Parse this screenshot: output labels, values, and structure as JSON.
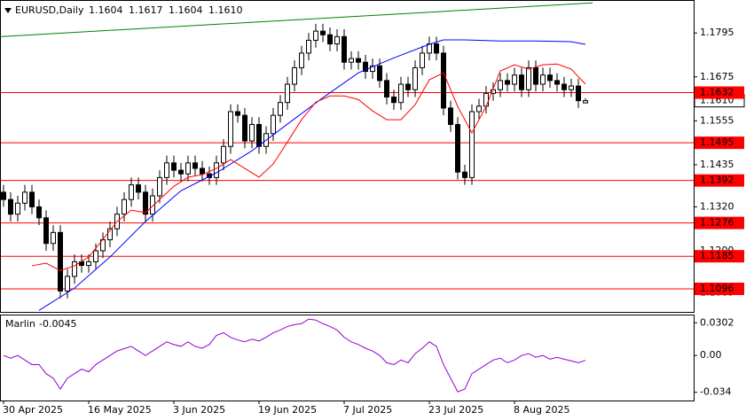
{
  "chart_data": [
    {
      "type": "candlestick",
      "title": "EURUSD,Daily",
      "header_values": [
        "1.1604",
        "1.1617",
        "1.1604",
        "1.1610"
      ],
      "xlim": [
        -0.5,
        97.25
      ],
      "xticks": [
        {
          "value": 0,
          "label": "30 Apr 2025"
        },
        {
          "value": 12,
          "label": "16 May 2025"
        },
        {
          "value": 24,
          "label": "3 Jun 2025"
        },
        {
          "value": 36,
          "label": "19 Jun 2025"
        },
        {
          "value": 48,
          "label": "7 Jul 2025"
        },
        {
          "value": 60,
          "label": "23 Jul 2025"
        },
        {
          "value": 72,
          "label": "8 Aug 2025"
        }
      ],
      "open": [
        1.136,
        1.134,
        1.13,
        1.133,
        1.136,
        1.132,
        1.129,
        1.122,
        1.125,
        1.109,
        1.113,
        1.117,
        1.116,
        1.117,
        1.12,
        1.123,
        1.126,
        1.13,
        1.134,
        1.138,
        1.136,
        1.13,
        1.135,
        1.14,
        1.144,
        1.142,
        1.141,
        1.144,
        1.1425,
        1.141,
        1.14,
        1.144,
        1.1485,
        1.158,
        1.157,
        1.15,
        1.1545,
        1.1485,
        1.152,
        1.157,
        1.1605,
        1.1655,
        1.17,
        1.174,
        1.1775,
        1.18,
        1.179,
        1.1765,
        1.1785,
        1.1715,
        1.1725,
        1.1715,
        1.169,
        1.1705,
        1.1665,
        1.162,
        1.1605,
        1.1655,
        1.164,
        1.17,
        1.174,
        1.1765,
        1.174,
        1.159,
        1.1545,
        1.1415,
        1.14,
        1.158,
        1.1595,
        1.163,
        1.164,
        1.1665,
        1.1655,
        1.168,
        1.164,
        1.17,
        1.1655,
        1.168,
        1.1665,
        1.1655,
        1.164,
        1.165,
        1.1604
      ],
      "high": [
        1.138,
        1.136,
        1.135,
        1.138,
        1.138,
        1.134,
        1.131,
        1.127,
        1.127,
        1.115,
        1.119,
        1.119,
        1.119,
        1.122,
        1.125,
        1.128,
        1.132,
        1.136,
        1.14,
        1.14,
        1.138,
        1.137,
        1.142,
        1.146,
        1.146,
        1.144,
        1.146,
        1.146,
        1.1445,
        1.143,
        1.146,
        1.1505,
        1.16,
        1.16,
        1.159,
        1.1565,
        1.1565,
        1.154,
        1.159,
        1.1625,
        1.1675,
        1.172,
        1.176,
        1.1795,
        1.182,
        1.182,
        1.181,
        1.1805,
        1.1805,
        1.1745,
        1.1745,
        1.1735,
        1.1725,
        1.1725,
        1.1685,
        1.164,
        1.1675,
        1.1675,
        1.172,
        1.176,
        1.1785,
        1.1785,
        1.176,
        1.161,
        1.1565,
        1.1435,
        1.16,
        1.1615,
        1.165,
        1.166,
        1.1685,
        1.1685,
        1.17,
        1.17,
        1.172,
        1.172,
        1.17,
        1.17,
        1.1685,
        1.1675,
        1.167,
        1.167,
        1.1617
      ],
      "low": [
        1.132,
        1.128,
        1.128,
        1.131,
        1.13,
        1.127,
        1.12,
        1.12,
        1.107,
        1.107,
        1.111,
        1.114,
        1.114,
        1.115,
        1.118,
        1.121,
        1.124,
        1.128,
        1.132,
        1.134,
        1.128,
        1.128,
        1.133,
        1.138,
        1.14,
        1.139,
        1.139,
        1.1405,
        1.139,
        1.138,
        1.138,
        1.142,
        1.1465,
        1.155,
        1.148,
        1.148,
        1.1465,
        1.1465,
        1.15,
        1.155,
        1.1585,
        1.1635,
        1.168,
        1.172,
        1.1755,
        1.177,
        1.1745,
        1.1745,
        1.1695,
        1.1695,
        1.1695,
        1.167,
        1.167,
        1.1645,
        1.16,
        1.1585,
        1.1585,
        1.162,
        1.162,
        1.168,
        1.172,
        1.172,
        1.157,
        1.1525,
        1.1395,
        1.138,
        1.138,
        1.156,
        1.1575,
        1.161,
        1.162,
        1.1635,
        1.1635,
        1.162,
        1.162,
        1.1635,
        1.1635,
        1.1645,
        1.1635,
        1.162,
        1.162,
        1.159,
        1.1604
      ],
      "close": [
        1.134,
        1.13,
        1.133,
        1.136,
        1.132,
        1.129,
        1.122,
        1.125,
        1.109,
        1.113,
        1.117,
        1.116,
        1.117,
        1.12,
        1.123,
        1.126,
        1.13,
        1.134,
        1.138,
        1.136,
        1.13,
        1.135,
        1.14,
        1.144,
        1.142,
        1.141,
        1.144,
        1.1425,
        1.141,
        1.14,
        1.144,
        1.1485,
        1.158,
        1.157,
        1.15,
        1.1545,
        1.1485,
        1.152,
        1.157,
        1.1605,
        1.1655,
        1.17,
        1.174,
        1.1775,
        1.18,
        1.179,
        1.1765,
        1.1785,
        1.1715,
        1.1725,
        1.1715,
        1.169,
        1.1705,
        1.1665,
        1.162,
        1.1605,
        1.1655,
        1.164,
        1.17,
        1.174,
        1.1765,
        1.174,
        1.159,
        1.1545,
        1.1415,
        1.14,
        1.158,
        1.1595,
        1.163,
        1.164,
        1.1665,
        1.1655,
        1.168,
        1.164,
        1.17,
        1.1655,
        1.168,
        1.1665,
        1.1655,
        1.164,
        1.165,
        1.161,
        1.161
      ],
      "up_color": "#ffffff",
      "down_color": "#000000",
      "ylim": [
        1.1033,
        1.1885
      ],
      "yticks": [
        {
          "value": 1.1795,
          "label": "1.1795"
        },
        {
          "value": 1.1675,
          "label": "1.1675"
        },
        {
          "value": 1.1555,
          "label": "1.1555"
        },
        {
          "value": 1.1435,
          "label": "1.1435"
        },
        {
          "value": 1.132,
          "label": "1.1320"
        },
        {
          "value": 1.12,
          "label": "1.1200"
        },
        {
          "value": 1.1085,
          "label": "1.1085"
        }
      ],
      "lines": [
        {
          "color": "#0000ff",
          "x": [
            5,
            10,
            15,
            20,
            25,
            30,
            35,
            40,
            45,
            50,
            55,
            60,
            62,
            65,
            70,
            75,
            80,
            82
          ],
          "values": [
            1.1037,
            1.1098,
            1.1183,
            1.128,
            1.1364,
            1.1413,
            1.1473,
            1.1546,
            1.1618,
            1.1686,
            1.1727,
            1.1764,
            1.1776,
            1.1776,
            1.1773,
            1.1773,
            1.1771,
            1.1764
          ]
        },
        {
          "color": "#ff0000",
          "x": [
            4,
            6,
            8,
            10,
            12,
            14,
            16,
            18,
            20,
            22,
            24,
            26,
            28,
            30,
            32,
            34,
            36,
            38,
            40,
            42,
            44,
            46,
            48,
            50,
            52,
            54,
            56,
            58,
            60,
            62,
            64,
            66,
            68,
            70,
            72,
            74,
            76,
            78,
            80,
            82
          ],
          "values": [
            1.1159,
            1.1166,
            1.1146,
            1.1159,
            1.1183,
            1.1231,
            1.128,
            1.1311,
            1.1304,
            1.134,
            1.1376,
            1.1401,
            1.1408,
            1.1425,
            1.1449,
            1.1425,
            1.1401,
            1.1437,
            1.1497,
            1.1558,
            1.1606,
            1.1623,
            1.1623,
            1.1613,
            1.1582,
            1.1558,
            1.1558,
            1.1599,
            1.1667,
            1.1686,
            1.1594,
            1.1522,
            1.1594,
            1.1691,
            1.1708,
            1.1696,
            1.1708,
            1.171,
            1.1696,
            1.1655
          ]
        },
        {
          "color": "#008000",
          "x": [
            -0.5,
            83
          ],
          "values": [
            1.1785,
            1.1877
          ]
        }
      ],
      "levels": {
        "color": "#ff0000",
        "values": [
          1.1632,
          1.1495,
          1.1392,
          1.1276,
          1.1185,
          1.1096
        ]
      },
      "last_price": {
        "value": 1.161,
        "label": "1.1610"
      }
    },
    {
      "type": "line",
      "title": "Marlin",
      "last_value": -0.0045,
      "color": "#9400d3",
      "values": [
        0,
        -0.0025,
        0,
        -0.0042,
        -0.0084,
        -0.0084,
        -0.0168,
        -0.021,
        -0.031,
        -0.021,
        -0.0168,
        -0.0126,
        -0.0151,
        -0.0084,
        -0.0042,
        0,
        0.0042,
        0.0063,
        0.0084,
        0.0042,
        0,
        0.0042,
        0.0084,
        0.0126,
        0.0101,
        0.0084,
        0.0126,
        0.0084,
        0.0067,
        0.0101,
        0.0185,
        0.021,
        0.0168,
        0.0143,
        0.0126,
        0.0151,
        0.0134,
        0.0168,
        0.021,
        0.0235,
        0.0268,
        0.0285,
        0.0294,
        0.0336,
        0.0327,
        0.0294,
        0.0268,
        0.0235,
        0.0168,
        0.0126,
        0.0101,
        0.0067,
        0.0042,
        0,
        -0.0067,
        -0.0084,
        -0.0042,
        -0.0067,
        0.0017,
        0.0067,
        0.0126,
        0.0084,
        -0.0084,
        -0.021,
        -0.0336,
        -0.031,
        -0.0168,
        -0.0126,
        -0.0084,
        -0.0042,
        -0.0025,
        -0.0067,
        -0.0042,
        0,
        0.0017,
        -0.0017,
        0,
        -0.0034,
        -0.0017,
        -0.0034,
        -0.005,
        -0.0067,
        -0.0045
      ],
      "ylim": [
        -0.0416,
        0.0378
      ],
      "yticks": [
        {
          "value": 0.0302,
          "label": "0.0302"
        },
        {
          "value": 0,
          "label": "0.00"
        },
        {
          "value": -0.034,
          "label": "-0.034"
        }
      ]
    }
  ]
}
